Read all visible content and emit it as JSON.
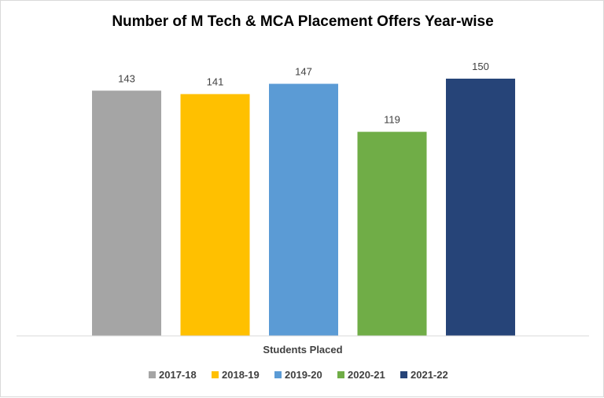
{
  "chart_data": {
    "type": "bar",
    "title": "Number of M Tech & MCA Placement Offers Year-wise",
    "categories": [
      "Students Placed"
    ],
    "xlabel": "Students Placed",
    "ylabel": "",
    "ylim": [
      0,
      160
    ],
    "grid": false,
    "legend_position": "bottom",
    "series": [
      {
        "name": "2017-18",
        "values": [
          143
        ],
        "color": "#a5a5a5"
      },
      {
        "name": "2018-19",
        "values": [
          141
        ],
        "color": "#ffc000"
      },
      {
        "name": "2019-20",
        "values": [
          147
        ],
        "color": "#5b9bd5"
      },
      {
        "name": "2020-21",
        "values": [
          119
        ],
        "color": "#70ad47"
      },
      {
        "name": "2021-22",
        "values": [
          150
        ],
        "color": "#264478"
      }
    ]
  }
}
